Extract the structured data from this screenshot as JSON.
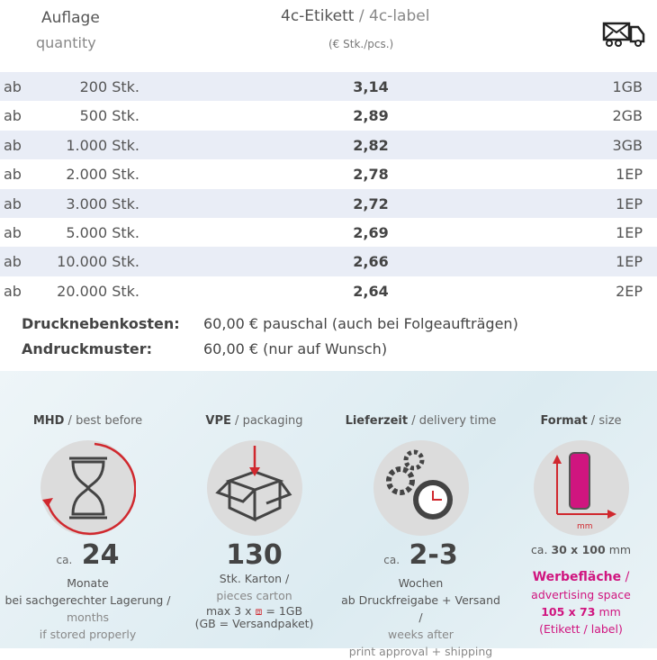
{
  "header": {
    "quantity_de": "Auflage",
    "quantity_en": "quantity",
    "product_de": "4c-Etikett",
    "product_en": "4c-label",
    "unit": "(€ Stk./pcs.)",
    "shipping_icon": "mail-truck-icon"
  },
  "rows": [
    {
      "prefix": "ab",
      "qty": "200 Stk.",
      "price": "3,14",
      "ship": "1GB"
    },
    {
      "prefix": "ab",
      "qty": "500 Stk.",
      "price": "2,89",
      "ship": "2GB"
    },
    {
      "prefix": "ab",
      "qty": "1.000 Stk.",
      "price": "2,82",
      "ship": "3GB"
    },
    {
      "prefix": "ab",
      "qty": "2.000 Stk.",
      "price": "2,78",
      "ship": "1EP"
    },
    {
      "prefix": "ab",
      "qty": "3.000 Stk.",
      "price": "2,72",
      "ship": "1EP"
    },
    {
      "prefix": "ab",
      "qty": "5.000 Stk.",
      "price": "2,69",
      "ship": "1EP"
    },
    {
      "prefix": "ab",
      "qty": "10.000 Stk.",
      "price": "2,66",
      "ship": "1EP"
    },
    {
      "prefix": "ab",
      "qty": "20.000 Stk.",
      "price": "2,64",
      "ship": "2EP"
    }
  ],
  "extras": [
    {
      "label": "Drucknebenkosten:",
      "value": "60,00 € pauschal (auch bei Folgeaufträgen)"
    },
    {
      "label": "Andruckmuster:",
      "value": "60,00 € (nur auf Wunsch)"
    }
  ],
  "info": {
    "mhd": {
      "title_de": "MHD",
      "title_en": "best before",
      "ca": "ca.",
      "value": "24",
      "l1": "Monate",
      "l2": "bei sachgerechter Lagerung /",
      "l3": "months",
      "l4": "if stored properly"
    },
    "vpe": {
      "title_de": "VPE",
      "title_en": "packaging",
      "value": "130",
      "l1": "Stk. Karton /",
      "l2": "pieces carton",
      "l3a": "max 3 x",
      "l3b": "= 1GB",
      "l4": "(GB = Versandpaket)"
    },
    "delivery": {
      "title_de": "Lieferzeit",
      "title_en": "delivery time",
      "ca": "ca.",
      "value": "2-3",
      "l1": "Wochen",
      "l2": "ab Druckfreigabe + Versand /",
      "l3": "weeks after",
      "l4": "print approval + shipping"
    },
    "format": {
      "title_de": "Format",
      "title_en": "size",
      "axis_unit": "mm",
      "size_ca": "ca.",
      "size": "30 x 100",
      "size_unit": "mm",
      "ad_de": "Werbefläche",
      "ad_en": "advertising space",
      "ad_size": "105 x 73",
      "ad_unit": "mm",
      "ad_note": "(Etikett / label)"
    }
  },
  "colors": {
    "accent_red": "#d0282e",
    "accent_pink": "#d0157f",
    "row_shade": "#e9edf6"
  }
}
